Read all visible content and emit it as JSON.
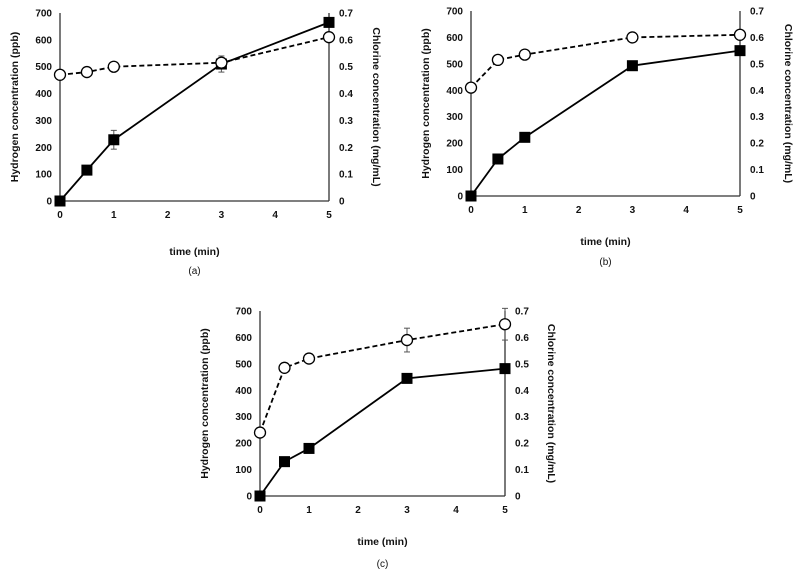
{
  "figure": {
    "panel_labels": [
      "(a)",
      "(b)",
      "(c)"
    ]
  },
  "chart_data": [
    {
      "type": "line",
      "panel": "(a)",
      "title": "",
      "xlabel": "time (min)",
      "ylabel": "Hydrogen concentration (ppb)",
      "y2label": "Chlorine concentration (mg/mL)",
      "xlim": [
        0,
        5
      ],
      "ylim": [
        0,
        700
      ],
      "y2lim": [
        0,
        0.7
      ],
      "xticks": [
        "0",
        "1",
        "2",
        "3",
        "4",
        "5"
      ],
      "yticks": [
        "0",
        "100",
        "200",
        "300",
        "400",
        "500",
        "600",
        "700"
      ],
      "y2ticks": [
        "0",
        "0.1",
        "0.2",
        "0.3",
        "0.4",
        "0.5",
        "0.6",
        "0.7"
      ],
      "grid": false,
      "legend": "none",
      "x": [
        0,
        0.5,
        1,
        3,
        5
      ],
      "series": [
        {
          "name": "Hydrogen",
          "axis": "left",
          "marker": "filled-square",
          "line": "solid",
          "values": [
            0,
            115,
            228,
            510,
            665
          ],
          "errors": [
            0,
            8,
            35,
            30,
            0
          ]
        },
        {
          "name": "Chlorine",
          "axis": "right",
          "marker": "open-circle",
          "line": "dashed",
          "values": [
            0.47,
            0.48,
            0.5,
            0.515,
            0.61
          ],
          "errors": [
            0,
            0,
            0,
            0,
            0
          ]
        }
      ]
    },
    {
      "type": "line",
      "panel": "(b)",
      "title": "",
      "xlabel": "time (min)",
      "ylabel": "Hydrogen concentration (ppb)",
      "y2label": "Chlorine concentration (mg/mL)",
      "xlim": [
        0,
        5
      ],
      "ylim": [
        0,
        700
      ],
      "y2lim": [
        0,
        0.7
      ],
      "xticks": [
        "0",
        "1",
        "2",
        "3",
        "4",
        "5"
      ],
      "yticks": [
        "0",
        "100",
        "200",
        "300",
        "400",
        "500",
        "600",
        "700"
      ],
      "y2ticks": [
        "0",
        "0.1",
        "0.2",
        "0.3",
        "0.4",
        "0.5",
        "0.6",
        "0.7"
      ],
      "grid": false,
      "legend": "none",
      "x": [
        0,
        0.5,
        1,
        3,
        5
      ],
      "series": [
        {
          "name": "Hydrogen",
          "axis": "left",
          "marker": "filled-square",
          "line": "solid",
          "values": [
            0,
            140,
            222,
            493,
            550
          ],
          "errors": [
            0,
            10,
            0,
            15,
            0
          ]
        },
        {
          "name": "Chlorine",
          "axis": "right",
          "marker": "open-circle",
          "line": "dashed",
          "values": [
            0.41,
            0.515,
            0.535,
            0.6,
            0.61
          ],
          "errors": [
            0,
            0,
            0,
            0,
            0
          ]
        }
      ]
    },
    {
      "type": "line",
      "panel": "(c)",
      "title": "",
      "xlabel": "time (min)",
      "ylabel": "Hydrogen concentration (ppb)",
      "y2label": "Chlorine concentration (mg/mL)",
      "xlim": [
        0,
        5
      ],
      "ylim": [
        0,
        700
      ],
      "y2lim": [
        0,
        0.7
      ],
      "xticks": [
        "0",
        "1",
        "2",
        "3",
        "4",
        "5"
      ],
      "yticks": [
        "0",
        "100",
        "200",
        "300",
        "400",
        "500",
        "600",
        "700"
      ],
      "y2ticks": [
        "0",
        "0.1",
        "0.2",
        "0.3",
        "0.4",
        "0.5",
        "0.6",
        "0.7"
      ],
      "grid": false,
      "legend": "none",
      "x": [
        0,
        0.5,
        1,
        3,
        5
      ],
      "series": [
        {
          "name": "Hydrogen",
          "axis": "left",
          "marker": "filled-square",
          "line": "solid",
          "values": [
            0,
            130,
            180,
            445,
            482
          ],
          "errors": [
            0,
            0,
            0,
            0,
            0
          ]
        },
        {
          "name": "Chlorine",
          "axis": "right",
          "marker": "open-circle",
          "line": "dashed",
          "values": [
            0.24,
            0.485,
            0.52,
            0.59,
            0.65
          ],
          "errors": [
            0,
            0,
            0,
            0.045,
            0.06
          ]
        }
      ]
    }
  ]
}
